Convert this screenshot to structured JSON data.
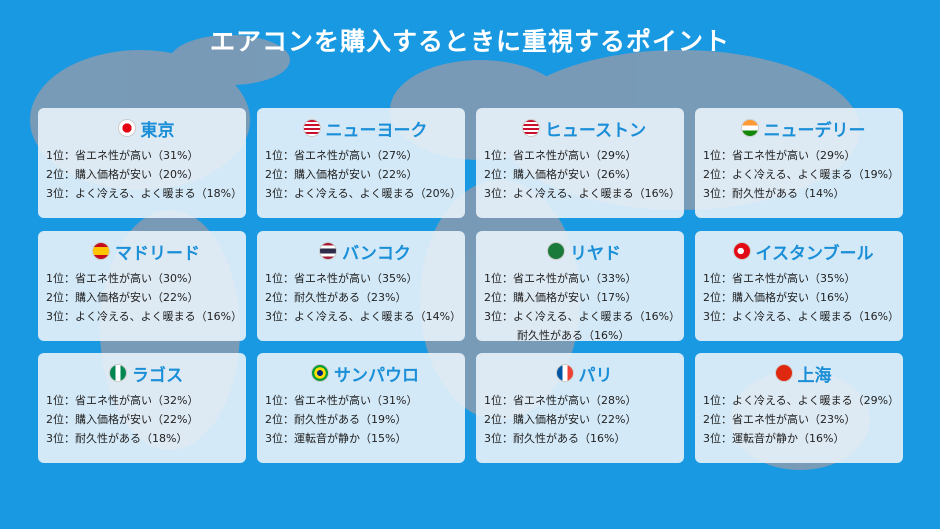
{
  "title": "エアコンを購入するときに重視するポイント",
  "cards": [
    {
      "city": "東京",
      "flag": "japan",
      "lines": [
        "1位：省エネ性が高い（31%）",
        "2位：購入価格が安い（20%）",
        "3位：よく冷える、よく暖まる（18%）"
      ]
    },
    {
      "city": "ニューヨーク",
      "flag": "usa",
      "lines": [
        "1位：省エネ性が高い（27%）",
        "2位：購入価格が安い（22%）",
        "3位：よく冷える、よく暖まる（20%）"
      ]
    },
    {
      "city": "ヒューストン",
      "flag": "usa",
      "lines": [
        "1位：省エネ性が高い（29%）",
        "2位：購入価格が安い（26%）",
        "3位：よく冷える、よく暖まる（16%）"
      ]
    },
    {
      "city": "ニューデリー",
      "flag": "india",
      "lines": [
        "1位：省エネ性が高い（29%）",
        "2位：よく冷える、よく暖まる（19%）",
        "3位：耐久性がある（14%）"
      ]
    },
    {
      "city": "マドリード",
      "flag": "spain",
      "lines": [
        "1位：省エネ性が高い（30%）",
        "2位：購入価格が安い（22%）",
        "3位：よく冷える、よく暖まる（16%）"
      ]
    },
    {
      "city": "バンコク",
      "flag": "thailand",
      "lines": [
        "1位：省エネ性が高い（35%）",
        "2位：耐久性がある（23%）",
        "3位：よく冷える、よく暖まる（14%）"
      ]
    },
    {
      "city": "リヤド",
      "flag": "saudi",
      "lines": [
        "1位：省エネ性が高い（33%）",
        "2位：購入価格が安い（17%）",
        "3位：よく冷える、よく暖まる（16%）",
        "耐久性がある（16%）"
      ]
    },
    {
      "city": "イスタンブール",
      "flag": "turkey",
      "lines": [
        "1位：省エネ性が高い（35%）",
        "2位：購入価格が安い（16%）",
        "3位：よく冷える、よく暖まる（16%）"
      ]
    },
    {
      "city": "ラゴス",
      "flag": "nigeria",
      "lines": [
        "1位：省エネ性が高い（32%）",
        "2位：購入価格が安い（22%）",
        "3位：耐久性がある（18%）"
      ]
    },
    {
      "city": "サンパウロ",
      "flag": "brazil",
      "lines": [
        "1位：省エネ性が高い（31%）",
        "2位：耐久性がある（19%）",
        "3位：運転音が静か（15%）"
      ]
    },
    {
      "city": "パリ",
      "flag": "france",
      "lines": [
        "1位：省エネ性が高い（28%）",
        "2位：購入価格が安い（22%）",
        "3位：耐久性がある（16%）"
      ]
    },
    {
      "city": "上海",
      "flag": "china",
      "lines": [
        "1位：よく冷える、よく暖まる（29%）",
        "2位：省エネ性が高い（23%）",
        "3位：運転音が静か（16%）"
      ]
    }
  ]
}
